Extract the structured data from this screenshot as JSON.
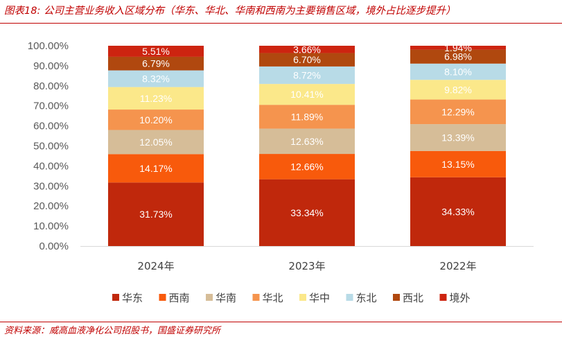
{
  "title": "图表18:  公司主营业务收入区域分布（华东、华北、华南和西南为主要销售区域，境外占比逐步提升）",
  "source": "资料来源：威高血液净化公司招股书，国盛证券研究所",
  "colors": {
    "accent": "#c00000",
    "华东": "#c0280c",
    "西南": "#f85a0c",
    "华南": "#d6bd98",
    "华北": "#f5944e",
    "华中": "#fbe88a",
    "东北": "#b8dbe7",
    "西北": "#b0480f",
    "境外": "#cd2410"
  },
  "chart_data": {
    "type": "bar",
    "stacked": true,
    "categories": [
      "2024年",
      "2023年",
      "2022年"
    ],
    "y_ticks": [
      "0.00%",
      "10.00%",
      "20.00%",
      "30.00%",
      "40.00%",
      "50.00%",
      "60.00%",
      "70.00%",
      "80.00%",
      "90.00%",
      "100.00%"
    ],
    "ylim": [
      0,
      100
    ],
    "grid": false,
    "legend_position": "bottom",
    "series": [
      {
        "name": "华东",
        "values": [
          31.73,
          33.34,
          34.33
        ],
        "labels": [
          "31.73%",
          "33.34%",
          "34.33%"
        ]
      },
      {
        "name": "西南",
        "values": [
          14.17,
          12.66,
          13.15
        ],
        "labels": [
          "14.17%",
          "12.66%",
          "13.15%"
        ]
      },
      {
        "name": "华南",
        "values": [
          12.05,
          12.63,
          13.39
        ],
        "labels": [
          "12.05%",
          "12.63%",
          "13.39%"
        ]
      },
      {
        "name": "华北",
        "values": [
          10.2,
          11.89,
          12.29
        ],
        "labels": [
          "10.20%",
          "11.89%",
          "12.29%"
        ]
      },
      {
        "name": "华中",
        "values": [
          11.23,
          10.41,
          9.82
        ],
        "labels": [
          "11.23%",
          "10.41%",
          "9.82%"
        ]
      },
      {
        "name": "东北",
        "values": [
          8.32,
          8.72,
          8.1
        ],
        "labels": [
          "8.32%",
          "8.72%",
          "8.10%"
        ]
      },
      {
        "name": "西北",
        "values": [
          6.79,
          6.7,
          6.98
        ],
        "labels": [
          "6.79%",
          "6.70%",
          "6.98%"
        ]
      },
      {
        "name": "境外",
        "values": [
          5.51,
          3.66,
          1.94
        ],
        "labels": [
          "5.51%",
          "3.66%",
          "1.94%"
        ]
      }
    ]
  }
}
